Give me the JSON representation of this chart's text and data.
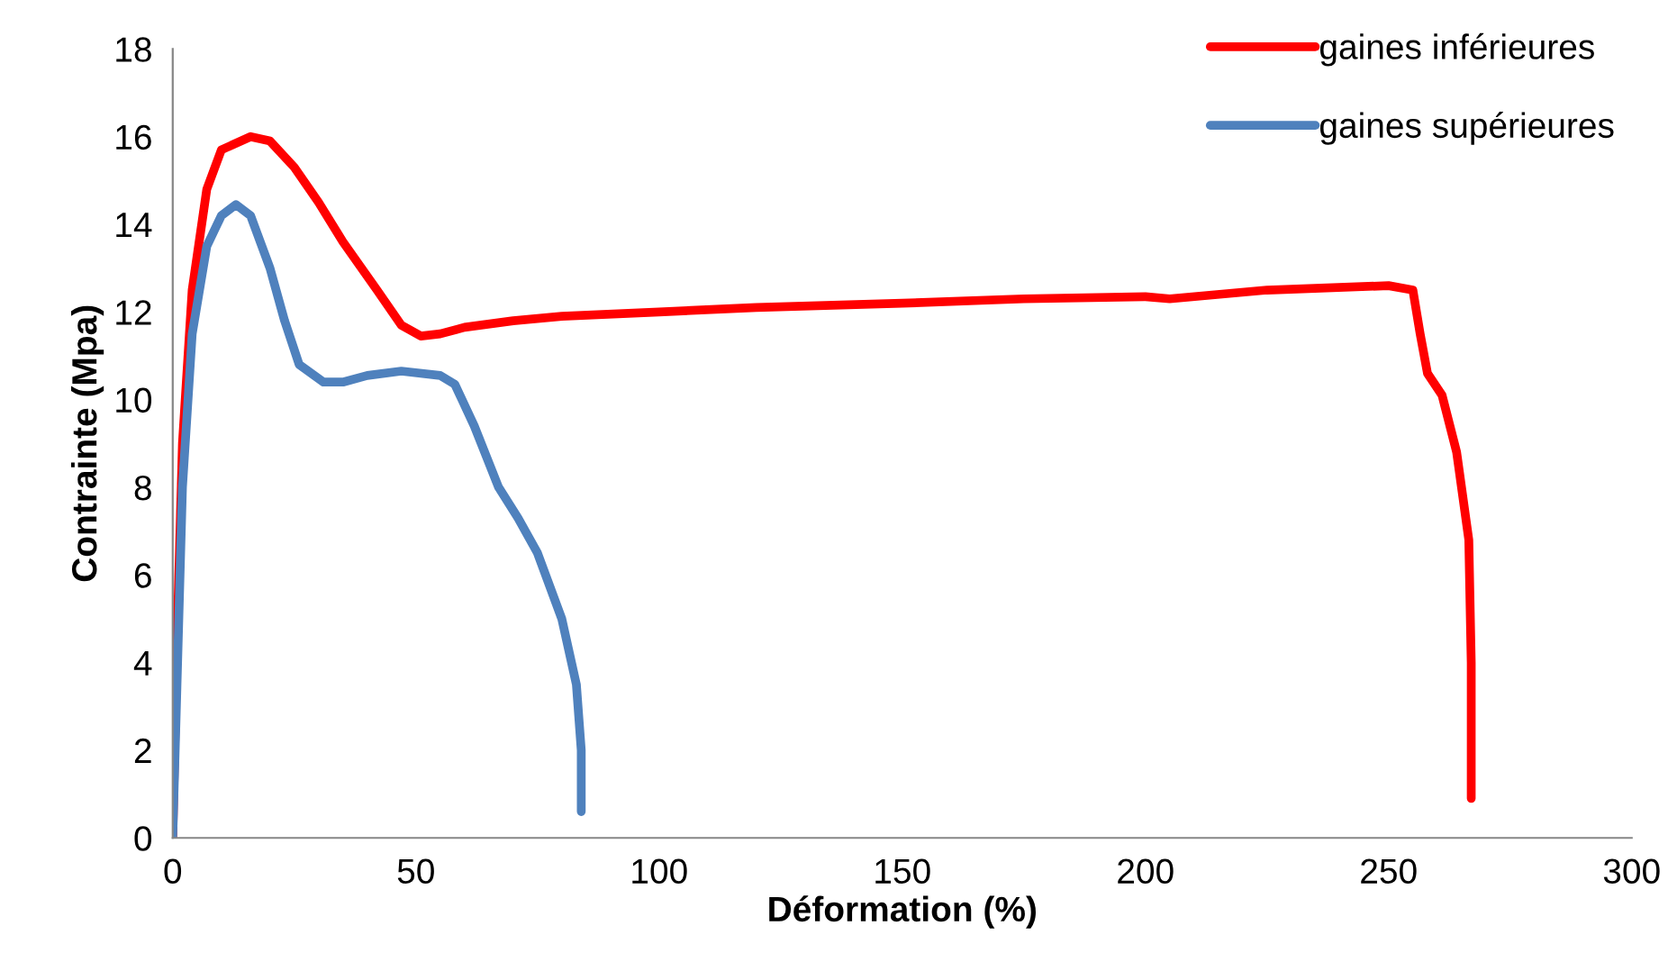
{
  "chart_data": {
    "type": "line",
    "xlabel": "Déformation (%)",
    "ylabel": "Contrainte (Mpa)",
    "xlim": [
      0,
      300
    ],
    "xticks": [
      0,
      50,
      100,
      150,
      200,
      250,
      300
    ],
    "ylim": [
      0,
      18
    ],
    "yticks": [
      0,
      2,
      4,
      6,
      8,
      10,
      12,
      14,
      16,
      18
    ],
    "grid": false,
    "legend": "top right",
    "marker": "none",
    "line_style": "solid",
    "series": [
      {
        "name": "gaines inférieures",
        "color": "#ff0000",
        "x": [
          0,
          1,
          2,
          4,
          7,
          10,
          16,
          20,
          25,
          30,
          35,
          42,
          47,
          51,
          55,
          60,
          70,
          80,
          100,
          120,
          150,
          175,
          200,
          205,
          225,
          250,
          255,
          256.5,
          258,
          261,
          264,
          266.5,
          267,
          267
        ],
        "values": [
          0,
          5,
          9,
          12.5,
          14.8,
          15.7,
          16.0,
          15.9,
          15.3,
          14.5,
          13.6,
          12.5,
          11.7,
          11.45,
          11.5,
          11.65,
          11.8,
          11.9,
          12.0,
          12.1,
          12.2,
          12.3,
          12.35,
          12.3,
          12.5,
          12.6,
          12.5,
          11.5,
          10.6,
          10.1,
          8.8,
          6.8,
          4,
          0.9
        ]
      },
      {
        "name": "gaines supérieures",
        "color": "#4f81bd",
        "x": [
          0,
          1,
          2,
          4,
          7,
          10,
          13,
          16,
          20,
          23,
          26,
          31,
          35,
          40,
          47,
          55,
          58,
          62,
          67,
          71,
          75,
          80,
          83,
          84,
          84
        ],
        "values": [
          0,
          4,
          8,
          11.5,
          13.5,
          14.2,
          14.45,
          14.2,
          13,
          11.8,
          10.8,
          10.4,
          10.4,
          10.55,
          10.65,
          10.55,
          10.35,
          9.4,
          8,
          7.3,
          6.5,
          5,
          3.5,
          2,
          0.6
        ]
      }
    ]
  }
}
